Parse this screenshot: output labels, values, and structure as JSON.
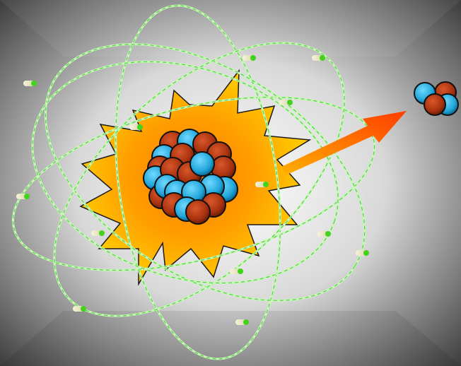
{
  "illustration": {
    "subject": "alpha-decay-atom",
    "palette": {
      "background_center": "#ffffff",
      "background_edge": "#2a2a2a",
      "orbit": "#c9f7b4",
      "orbit_dash": "#59d65a",
      "burst_outer": "#ffc400",
      "burst_inner": "#ff8a00",
      "proton": "#b83c13",
      "neutron": "#2ab3e6",
      "electron_body": "#f2efd0",
      "electron_cap": "#44d21e",
      "arrow_start": "#ffb000",
      "arrow_end": "#ff3c00"
    },
    "orbit_count": 5,
    "electron_count": 14,
    "emitted_particle": {
      "name": "alpha-particle",
      "protons": 2,
      "neutrons": 2
    }
  }
}
